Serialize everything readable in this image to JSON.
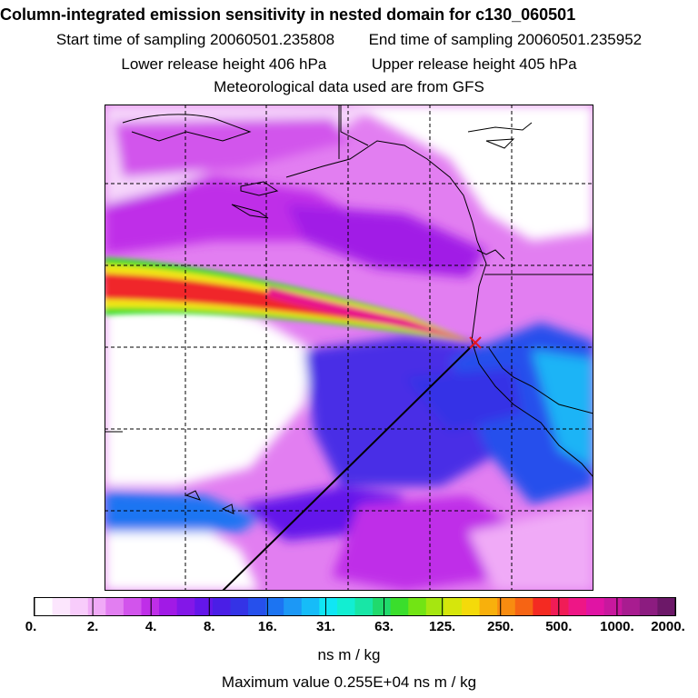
{
  "header": {
    "title": "Column-integrated emission sensitivity in nested domain for c130_060501",
    "start_label": "Start time of sampling 20060501.235808",
    "end_label": "End time of sampling 20060501.235952",
    "lower_label": "Lower release height  406 hPa",
    "upper_label": "Upper release height  405 hPa",
    "met_label": "Meteorological data used are from GFS"
  },
  "legend": {
    "tick_labels": [
      "0.",
      "2.",
      "4.",
      "8.",
      "16.",
      "31.",
      "63.",
      "125.",
      "250.",
      "500.",
      "1000.",
      "2000."
    ],
    "units": "ns m / kg",
    "colors": [
      "#ffffff",
      "#fce6fd",
      "#f8ccfb",
      "#f0aaf7",
      "#e27ef1",
      "#d254ec",
      "#bf2ee8",
      "#a11ae6",
      "#8317e8",
      "#6416ea",
      "#4a1ee6",
      "#3433e6",
      "#2650ec",
      "#1c74f2",
      "#1c98f6",
      "#16bcf8",
      "#10e6f4",
      "#12eed2",
      "#18e6a6",
      "#20da6c",
      "#3ade2c",
      "#72e414",
      "#a6e610",
      "#d6e60c",
      "#f4da0a",
      "#f8b00c",
      "#f88c10",
      "#f66414",
      "#f42a22",
      "#f01c56",
      "#ee1686",
      "#e014a4",
      "#c8189e",
      "#a81c90",
      "#8c1c80",
      "#6c1868"
    ]
  },
  "footer": {
    "max_label": "Maximum value  0.255E+04 ns m / kg"
  },
  "map": {
    "release_marker": "red cross at release point",
    "colors": {
      "background": "#ffffff",
      "light_violet": "#e59af4",
      "violet": "#b040ea",
      "purple": "#7a1fe6",
      "blue": "#3a3ae8",
      "cyan": "#22c8f4",
      "plume_red": "#f0262a",
      "plume_pink": "#e8148c",
      "plume_yellow": "#f2e614",
      "plume_green": "#4ade38"
    }
  }
}
